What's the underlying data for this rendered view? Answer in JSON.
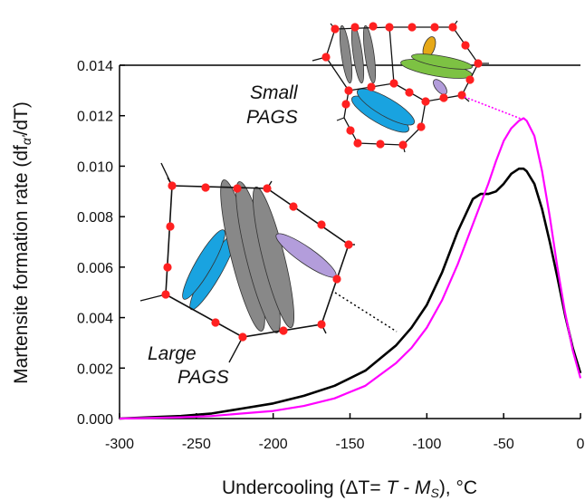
{
  "chart_data": {
    "type": "line",
    "xlabel_parts": [
      "Undercooling (ΔT= ",
      "T",
      " - M",
      "S",
      "), °C"
    ],
    "ylabel_parts": [
      "Martensite formation rate (df",
      "α'",
      "/dT",
      ")"
    ],
    "xlim": [
      -300,
      0
    ],
    "ylim": [
      0,
      0.014
    ],
    "x_ticks": [
      "-300",
      "-250",
      "-200",
      "-150",
      "-100",
      "-50",
      "0"
    ],
    "y_ticks": [
      "0.000",
      "0.002",
      "0.004",
      "0.006",
      "0.008",
      "0.010",
      "0.012",
      "0.014"
    ],
    "grid": false,
    "series": [
      {
        "name": "Large PAGS",
        "color": "#000000",
        "x": [
          -300,
          -280,
          -260,
          -240,
          -220,
          -200,
          -180,
          -160,
          -140,
          -120,
          -110,
          -100,
          -90,
          -80,
          -70,
          -65,
          -60,
          -55,
          -50,
          -45,
          -40,
          -37,
          -35,
          -30,
          -25,
          -20,
          -15,
          -10,
          -5,
          0
        ],
        "y": [
          0.0,
          5e-05,
          0.0001,
          0.0002,
          0.0004,
          0.0006,
          0.0009,
          0.0013,
          0.0019,
          0.0029,
          0.0036,
          0.0045,
          0.0058,
          0.0074,
          0.0087,
          0.0089,
          0.0089,
          0.009,
          0.0093,
          0.0097,
          0.0099,
          0.0099,
          0.0098,
          0.0093,
          0.0083,
          0.007,
          0.0056,
          0.0041,
          0.0028,
          0.0018
        ]
      },
      {
        "name": "Small PAGS",
        "color": "#ff00ff",
        "x": [
          -300,
          -280,
          -260,
          -240,
          -220,
          -200,
          -180,
          -160,
          -140,
          -120,
          -110,
          -100,
          -90,
          -80,
          -70,
          -60,
          -55,
          -50,
          -45,
          -40,
          -37,
          -35,
          -30,
          -25,
          -20,
          -15,
          -10,
          -5,
          0
        ],
        "y": [
          0.0,
          2e-05,
          5e-05,
          0.0001,
          0.0002,
          0.0003,
          0.0005,
          0.0008,
          0.0013,
          0.0022,
          0.0028,
          0.0036,
          0.0047,
          0.0061,
          0.0077,
          0.0093,
          0.0102,
          0.011,
          0.0115,
          0.0118,
          0.0119,
          0.0118,
          0.0112,
          0.0098,
          0.008,
          0.006,
          0.0042,
          0.0027,
          0.0016
        ]
      }
    ],
    "annotations": [
      {
        "lines": [
          "Small",
          "PAGS"
        ],
        "series": "Small PAGS"
      },
      {
        "lines": [
          "Large",
          "PAGS"
        ],
        "series": "Large PAGS"
      }
    ],
    "insets": {
      "small_grains": [
        "#888888",
        "#19a3e0",
        "#7dc243",
        "#e6a817",
        "#b39ddb"
      ],
      "large_grains": [
        "#888888",
        "#19a3e0",
        "#b39ddb"
      ],
      "boundary_dot_color": "#ff2020"
    }
  }
}
